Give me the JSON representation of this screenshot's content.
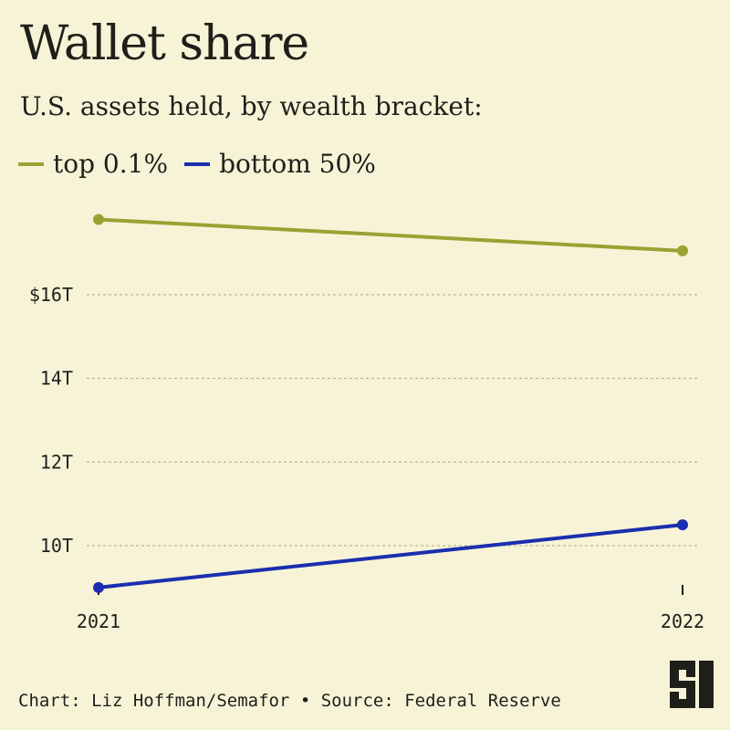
{
  "title": "Wallet share",
  "subtitle": "U.S. assets held,  by wealth bracket:",
  "legend": [
    {
      "label": "top 0.1%",
      "color": "#9aa232"
    },
    {
      "label": "bottom 50%",
      "color": "#1b2eb0"
    }
  ],
  "footer": "Chart: Liz Hoffman/Semafor • Source: Federal Reserve",
  "logo_icon": "semafor-s-logo",
  "chart_data": {
    "type": "line",
    "x": [
      "2021",
      "2022"
    ],
    "series": [
      {
        "name": "top 0.1%",
        "values": [
          17.8,
          17.05
        ],
        "color": "#9aa232"
      },
      {
        "name": "bottom 50%",
        "values": [
          9.0,
          10.5
        ],
        "color": "#1b2eb0"
      }
    ],
    "yticks": [
      {
        "value": 16,
        "label": "$16T"
      },
      {
        "value": 14,
        "label": "14T"
      },
      {
        "value": 12,
        "label": "12T"
      },
      {
        "value": 10,
        "label": "10T"
      }
    ],
    "ylim": [
      9,
      18
    ],
    "grid": true,
    "grid_style": "dashed"
  }
}
